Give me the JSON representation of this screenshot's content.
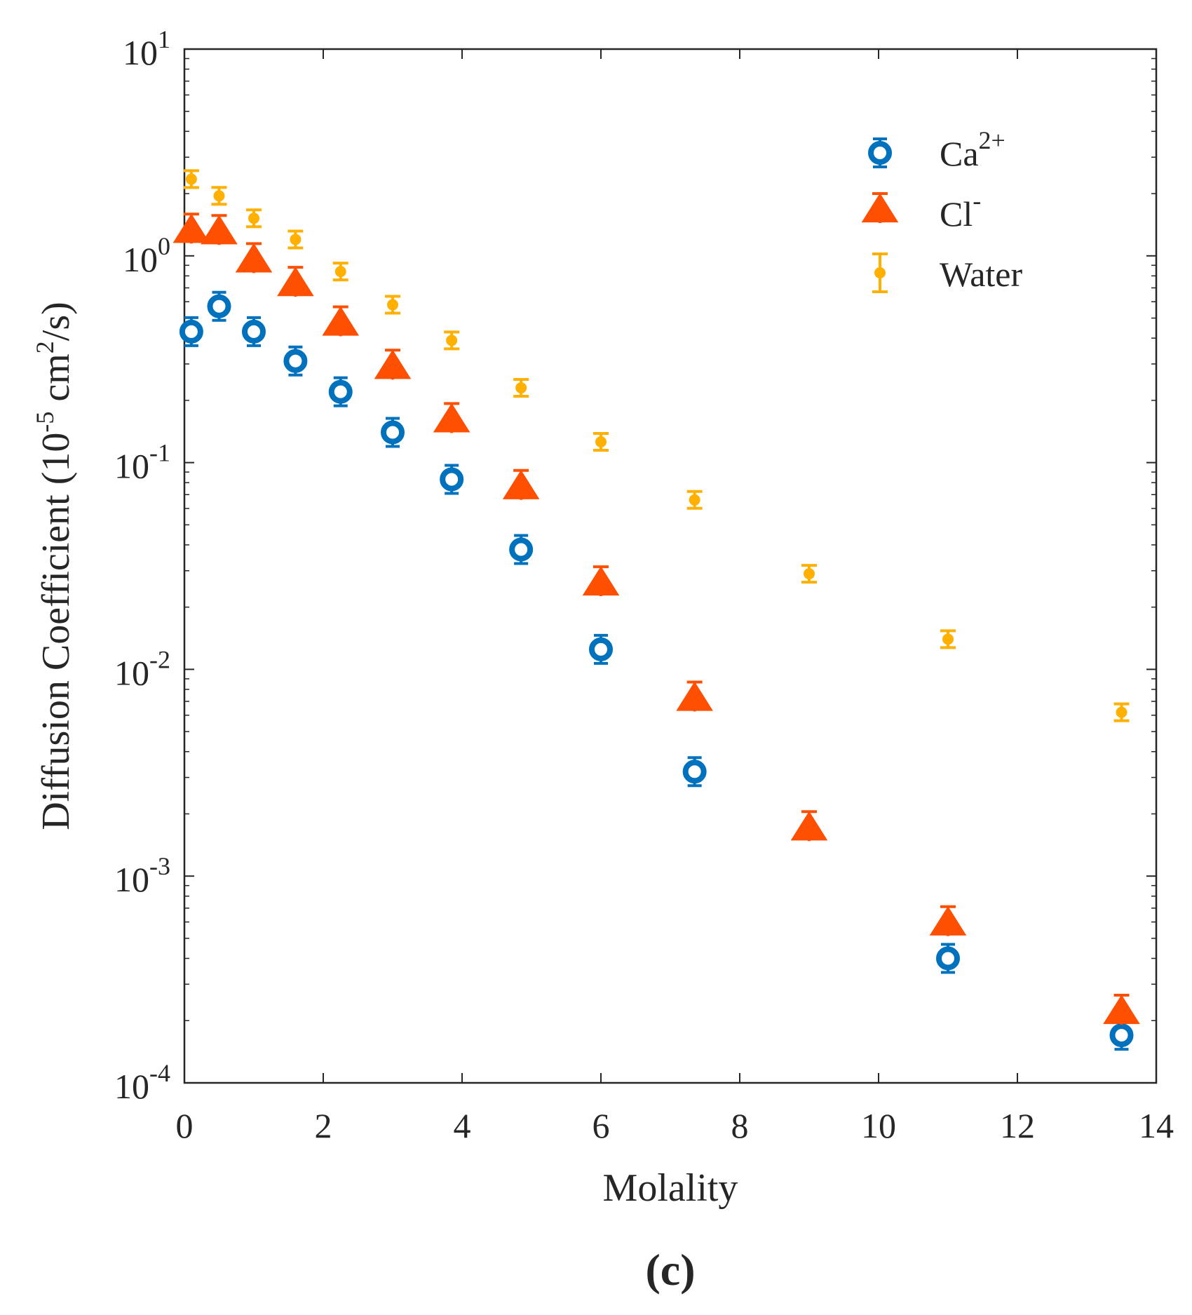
{
  "chart_data": {
    "type": "scatter",
    "title": "",
    "xlabel": "Molality",
    "ylabel_main": "Diffusion Coefficient (10",
    "ylabel_exp1": "-5",
    "ylabel_mid": " cm",
    "ylabel_exp2": "2",
    "ylabel_end": "/s)",
    "xlim": [
      0,
      14
    ],
    "ylim": [
      0.0001,
      10
    ],
    "yscale": "log",
    "x_ticks": [
      0,
      2,
      4,
      6,
      8,
      10,
      12,
      14
    ],
    "x_tick_labels": [
      "0",
      "2",
      "4",
      "6",
      "8",
      "10",
      "12",
      "14"
    ],
    "y_ticks": [
      {
        "value": 10,
        "base": "10",
        "exp": "1"
      },
      {
        "value": 1,
        "base": "10",
        "exp": "0"
      },
      {
        "value": 0.1,
        "base": "10",
        "exp": "-1"
      },
      {
        "value": 0.01,
        "base": "10",
        "exp": "-2"
      },
      {
        "value": 0.001,
        "base": "10",
        "exp": "-3"
      },
      {
        "value": 0.0001,
        "base": "10",
        "exp": "-4"
      }
    ],
    "legend_position": "top-right",
    "series": [
      {
        "name": "Ca",
        "superscript": "2+",
        "color": "#0072BD",
        "marker": "circle",
        "x": [
          0.1,
          0.5,
          1.0,
          1.6,
          2.25,
          3.0,
          3.85,
          4.85,
          6.0,
          7.35,
          11.0,
          13.5
        ],
        "y": [
          0.43,
          0.57,
          0.43,
          0.31,
          0.22,
          0.14,
          0.083,
          0.038,
          0.0125,
          0.0032,
          0.0004,
          0.00017
        ]
      },
      {
        "name": "Cl",
        "superscript": "-",
        "color": "#FF4F00",
        "marker": "triangle",
        "x": [
          0.1,
          0.5,
          1.0,
          1.6,
          2.25,
          3.0,
          3.85,
          4.85,
          6.0,
          7.35,
          9.0,
          11.0,
          13.5
        ],
        "y": [
          1.32,
          1.3,
          0.95,
          0.73,
          0.47,
          0.29,
          0.16,
          0.076,
          0.026,
          0.0072,
          0.0017,
          0.00059,
          0.00022
        ]
      },
      {
        "name": "Water",
        "superscript": "",
        "color": "#FFB000",
        "marker": "dot",
        "x": [
          0.1,
          0.5,
          1.0,
          1.6,
          2.25,
          3.0,
          3.85,
          4.85,
          6.0,
          7.35,
          9.0,
          11.0,
          13.5
        ],
        "y": [
          2.35,
          1.95,
          1.52,
          1.2,
          0.84,
          0.58,
          0.39,
          0.23,
          0.126,
          0.066,
          0.029,
          0.014,
          0.0062
        ]
      }
    ],
    "panel_label": "(c)"
  }
}
